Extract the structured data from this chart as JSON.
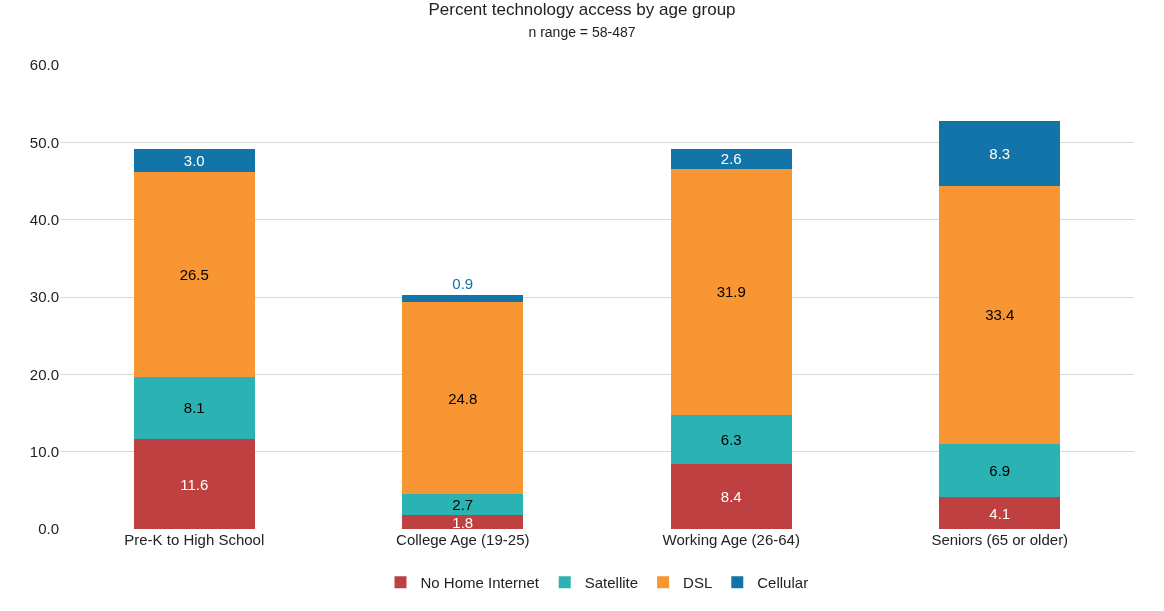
{
  "chart_data": {
    "type": "bar",
    "title": "Percent technology access by age group",
    "subtitle": "n range = 58-487",
    "categories": [
      "Pre-K to High School",
      "College Age (19-25)",
      "Working Age (26-64)",
      "Seniors (65 or older)"
    ],
    "stacked": true,
    "series": [
      {
        "name": "No Home Internet",
        "color": "#be4040",
        "values": [
          11.6,
          1.8,
          8.4,
          4.1
        ],
        "value_labels": [
          "11.6",
          "1.8",
          "8.4",
          "4.1"
        ]
      },
      {
        "name": "Satellite",
        "color": "#2bb3b3",
        "values": [
          8.1,
          2.7,
          6.3,
          6.9
        ],
        "value_labels": [
          "8.1",
          "2.7",
          "6.3",
          "6.9"
        ]
      },
      {
        "name": "DSL",
        "color": "#f79633",
        "values": [
          26.5,
          24.8,
          31.9,
          33.4
        ],
        "value_labels": [
          "26.5",
          "24.8",
          "31.9",
          "33.4"
        ]
      },
      {
        "name": "Cellular",
        "color": "#1274a9",
        "values": [
          3.0,
          0.9,
          2.6,
          8.3
        ],
        "value_labels": [
          "3.0",
          "0.9",
          "2.6",
          "8.3"
        ]
      }
    ],
    "ylim": [
      0,
      60
    ],
    "yticks": [
      {
        "value": 0,
        "label": "0.0"
      },
      {
        "value": 10,
        "label": "10.0"
      },
      {
        "value": 20,
        "label": "20.0"
      },
      {
        "value": 30,
        "label": "30.0"
      },
      {
        "value": 40,
        "label": "40.0"
      },
      {
        "value": 50,
        "label": "50.0"
      },
      {
        "value": 60,
        "label": "60.0"
      }
    ],
    "grid": "y",
    "legend": "bottom"
  }
}
